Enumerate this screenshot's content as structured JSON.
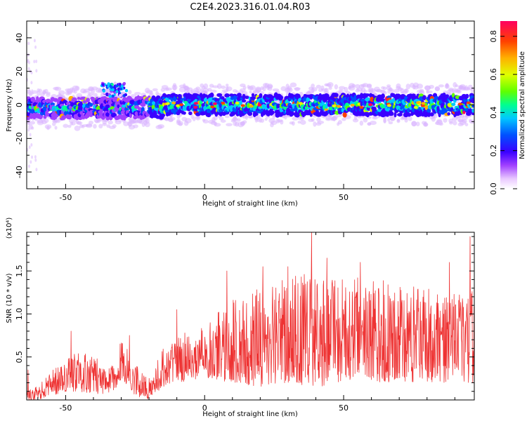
{
  "figure_title": "C2E4.2023.316.01.04.R03",
  "chart_data": [
    {
      "type": "heatmap",
      "title": "",
      "xlabel": "Height of straight line (km)",
      "ylabel": "Frequency (Hz)",
      "xlim": [
        -64,
        97
      ],
      "ylim": [
        -50,
        50
      ],
      "x_ticks": [
        -50,
        0,
        50
      ],
      "y_ticks": [
        -40,
        -20,
        0,
        20,
        40
      ],
      "colorbar": {
        "label": "Normalized spectral amplitude",
        "range": [
          0.0,
          0.88
        ],
        "ticks": [
          0.0,
          0.2,
          0.4,
          0.6,
          0.8
        ],
        "colormap": "rainbow",
        "colors": [
          "#ffffff",
          "#e9c8ff",
          "#a040ff",
          "#3a00ff",
          "#0050ff",
          "#00c8ff",
          "#00ff90",
          "#60ff00",
          "#e0ff00",
          "#ffb000",
          "#ff4000",
          "#ff0060"
        ]
      },
      "signal_band": {
        "center_frequency_hz": 0,
        "approx_halfwidth_hz": 6,
        "secondary_patch": {
          "x_range": [
            -37,
            -28
          ],
          "frequency_hz": 9
        },
        "sparse_noise_region": {
          "x_range": [
            -64,
            -60
          ]
        }
      },
      "peak_amplitude": 0.88
    },
    {
      "type": "line",
      "title": "",
      "xlabel": "Height of straight line (km)",
      "ylabel": "SNR (10 * v/v)",
      "y_multiplier_label": "(x10⁴)",
      "xlim": [
        -64,
        97
      ],
      "ylim": [
        0.0,
        1.95
      ],
      "y_unit_scale": 10000,
      "x_ticks": [
        -50,
        0,
        50
      ],
      "y_ticks": [
        0.5,
        1.0,
        1.5
      ],
      "y_tick_labels": [
        "0.5",
        "1.0",
        "1.5"
      ],
      "series": [
        {
          "name": "",
          "color": "#ee3333",
          "envelope_x": [
            -64,
            -60,
            -50,
            -40,
            -35,
            -30,
            -27,
            -25,
            -20,
            -15,
            -10,
            0,
            10,
            20,
            30,
            40,
            50,
            60,
            70,
            80,
            90,
            97
          ],
          "envelope_upper": [
            0.15,
            0.15,
            0.55,
            0.55,
            0.35,
            0.7,
            0.55,
            0.45,
            0.25,
            0.6,
            0.75,
            0.85,
            1.2,
            1.35,
            1.45,
            1.5,
            1.4,
            1.45,
            1.35,
            1.3,
            1.25,
            1.3
          ],
          "envelope_lower": [
            0.0,
            0.0,
            0.1,
            0.08,
            0.05,
            0.2,
            0.15,
            0.05,
            0.0,
            0.15,
            0.2,
            0.25,
            0.2,
            0.15,
            0.2,
            0.15,
            0.2,
            0.2,
            0.2,
            0.2,
            0.2,
            0.2
          ],
          "peaks": [
            {
              "x": -63.5,
              "y": 0.35
            },
            {
              "x": -48,
              "y": 0.8
            },
            {
              "x": -27,
              "y": 0.75
            },
            {
              "x": -10,
              "y": 1.05
            },
            {
              "x": 8,
              "y": 1.5
            },
            {
              "x": 21,
              "y": 1.55
            },
            {
              "x": 30,
              "y": 1.55
            },
            {
              "x": 38.5,
              "y": 1.95
            },
            {
              "x": 44,
              "y": 1.65
            },
            {
              "x": 56,
              "y": 1.6
            },
            {
              "x": 88,
              "y": 1.6
            },
            {
              "x": 95.5,
              "y": 1.9
            }
          ]
        }
      ]
    }
  ]
}
